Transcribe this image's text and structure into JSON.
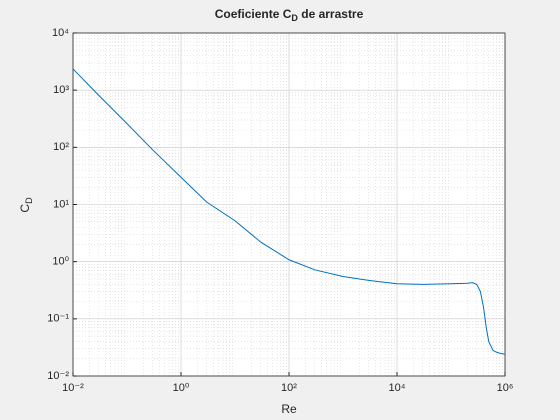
{
  "chart_data": {
    "type": "line",
    "title": {
      "text": "Coeficiente C",
      "subscript": "D",
      "rest": " de arrastre"
    },
    "xlabel": "Re",
    "ylabel": {
      "text": "C",
      "subscript": "D"
    },
    "xscale": "log",
    "yscale": "log",
    "grid": true,
    "minor_grid": true,
    "xlim": [
      0.01,
      1000000
    ],
    "ylim": [
      0.01,
      10000
    ],
    "xticks": [
      {
        "value": 0.01,
        "label": "10⁻²"
      },
      {
        "value": 1,
        "label": "10⁰"
      },
      {
        "value": 100,
        "label": "10²"
      },
      {
        "value": 10000,
        "label": "10⁴"
      },
      {
        "value": 1000000,
        "label": "10⁶"
      }
    ],
    "yticks": [
      {
        "value": 0.01,
        "label": "10⁻²"
      },
      {
        "value": 0.1,
        "label": "10⁻¹"
      },
      {
        "value": 1,
        "label": "10⁰"
      },
      {
        "value": 10,
        "label": "10¹"
      },
      {
        "value": 100,
        "label": "10²"
      },
      {
        "value": 1000,
        "label": "10³"
      },
      {
        "value": 10000,
        "label": "10⁴"
      }
    ],
    "x": [
      0.01,
      0.03,
      0.1,
      0.3,
      1,
      3,
      10,
      30,
      100,
      300,
      1000,
      3000,
      10000,
      30000,
      100000,
      200000,
      250000,
      300000,
      350000,
      400000,
      450000,
      500000,
      600000,
      700000,
      800000,
      1000000
    ],
    "series": [
      {
        "color": "#0072bd",
        "values": [
          2350,
          810,
          260,
          90,
          30,
          11,
          5.2,
          2.2,
          1.08,
          0.72,
          0.55,
          0.47,
          0.41,
          0.4,
          0.41,
          0.42,
          0.43,
          0.4,
          0.3,
          0.16,
          0.07,
          0.04,
          0.028,
          0.026,
          0.025,
          0.024
        ]
      }
    ]
  }
}
